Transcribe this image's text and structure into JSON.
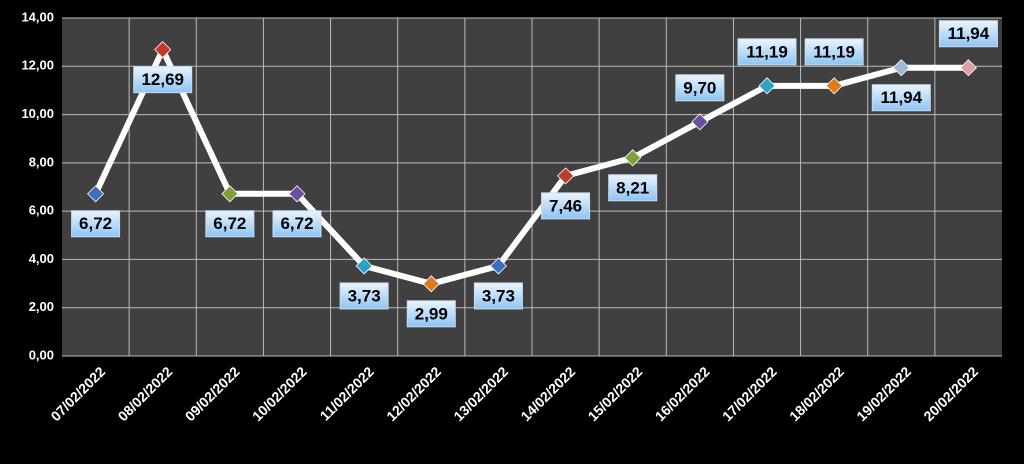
{
  "chart_data": {
    "type": "line",
    "categories": [
      "07/02/2022",
      "08/02/2022",
      "09/02/2022",
      "10/02/2022",
      "11/02/2022",
      "12/02/2022",
      "13/02/2022",
      "14/02/2022",
      "15/02/2022",
      "16/02/2022",
      "17/02/2022",
      "18/02/2022",
      "19/02/2022",
      "20/02/2022"
    ],
    "values": [
      6.72,
      12.69,
      6.72,
      6.72,
      3.73,
      2.99,
      3.73,
      7.46,
      8.21,
      9.7,
      11.19,
      11.19,
      11.94,
      11.94
    ],
    "value_labels": [
      "6,72",
      "12,69",
      "6,72",
      "6,72",
      "3,73",
      "2,99",
      "3,73",
      "7,46",
      "8,21",
      "9,70",
      "11,19",
      "11,19",
      "11,94",
      "11,94"
    ],
    "color": "#ffffff",
    "marker_colors": [
      "#3a6fc4",
      "#c0392b",
      "#7aa23a",
      "#6b4ea0",
      "#2aa3c4",
      "#e07a1f",
      "#3a6fc4",
      "#c0392b",
      "#7aa23a",
      "#6b4ea0",
      "#2aa3c4",
      "#e07a1f",
      "#9fb7d8",
      "#d8a0a0"
    ],
    "ylim": [
      0,
      14
    ],
    "yticks": [
      {
        "value": 0,
        "label": "0,00"
      },
      {
        "value": 2,
        "label": "2,00"
      },
      {
        "value": 4,
        "label": "4,00"
      },
      {
        "value": 6,
        "label": "6,00"
      },
      {
        "value": 8,
        "label": "8,00"
      },
      {
        "value": 10,
        "label": "10,00"
      },
      {
        "value": 12,
        "label": "12,00"
      },
      {
        "value": 14,
        "label": "14,00"
      }
    ],
    "grid": true
  }
}
